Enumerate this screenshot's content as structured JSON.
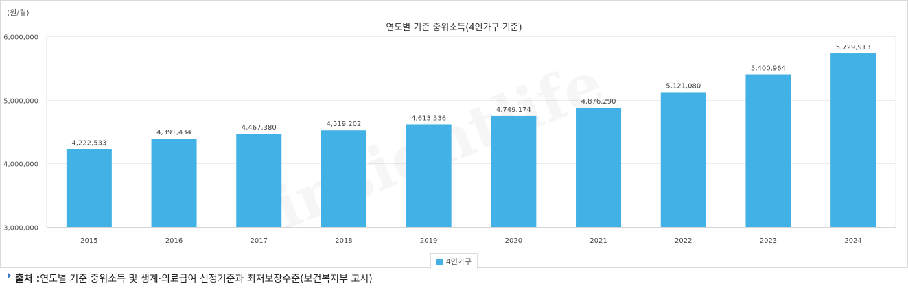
{
  "unit_label": "(원/월)",
  "chart_data": {
    "type": "bar",
    "title": "연도별 기준 중위소득(4인가구 기준)",
    "xlabel": "",
    "ylabel": "",
    "categories": [
      "2015",
      "2016",
      "2017",
      "2018",
      "2019",
      "2020",
      "2021",
      "2022",
      "2023",
      "2024"
    ],
    "series": [
      {
        "name": "4인가구",
        "values": [
          4222533,
          4391434,
          4467380,
          4519202,
          4613536,
          4749174,
          4876290,
          5121080,
          5400964,
          5729913
        ],
        "color": "#42b1e5"
      }
    ],
    "data_labels": [
      "4,222,533",
      "4,391,434",
      "4,467,380",
      "4,519,202",
      "4,613,536",
      "4,749,174",
      "4,876,290",
      "5,121,080",
      "5,400,964",
      "5,729,913"
    ],
    "yticks": [
      3000000,
      4000000,
      5000000,
      6000000
    ],
    "ytick_labels": [
      "3,000,000",
      "4,000,000",
      "5,000,000",
      "6,000,000"
    ],
    "ylim": [
      3000000,
      6000000
    ],
    "grid": true,
    "legend_position": "bottom-center"
  },
  "watermark": "insightlife",
  "source": {
    "label": "출처 : ",
    "text": "연도별 기준 중위소득 및 생계·의료급여 선정기준과 최저보장수준(보건복지부 고시)"
  }
}
